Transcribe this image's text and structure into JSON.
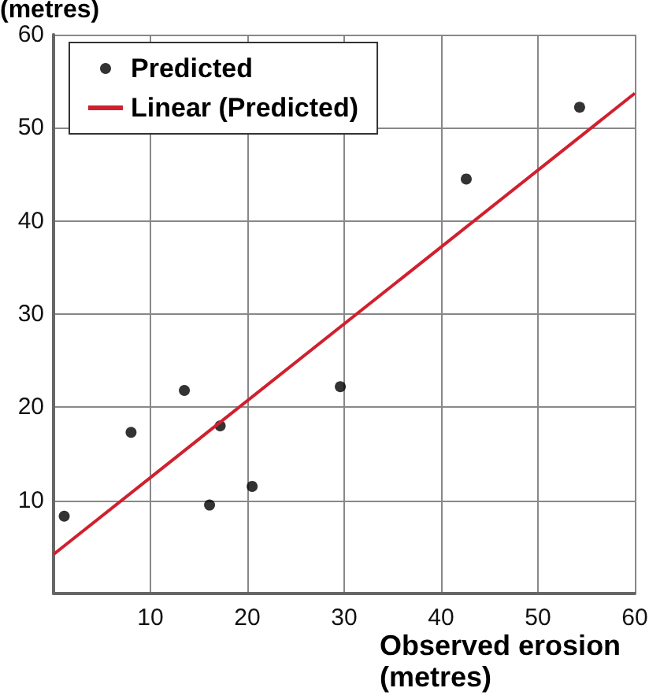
{
  "chart_data": {
    "type": "scatter",
    "xlabel": "Observed erosion (metres)",
    "ylabel": "(metres)",
    "xlim": [
      0,
      60
    ],
    "xticks": [
      10,
      20,
      30,
      40,
      50,
      60
    ],
    "ylim": [
      0,
      60
    ],
    "yticks": [
      10,
      20,
      30,
      40,
      50,
      60
    ],
    "grid": true,
    "legend": "top left",
    "series": [
      {
        "name": "Predicted",
        "marker": "circle",
        "color": "#000000",
        "x": [
          1.1,
          8.0,
          13.5,
          17.2,
          16.1,
          20.5,
          29.6,
          42.6,
          54.3
        ],
        "values": [
          8.3,
          17.3,
          21.8,
          18.0,
          9.5,
          11.5,
          22.2,
          44.5,
          52.2
        ]
      },
      {
        "name": "Linear (Predicted)",
        "type": "line",
        "marker": "none",
        "color": "#d0202e",
        "x": [
          0,
          60
        ],
        "values": [
          4.2,
          53.7
        ],
        "line_style": "solid"
      }
    ]
  }
}
